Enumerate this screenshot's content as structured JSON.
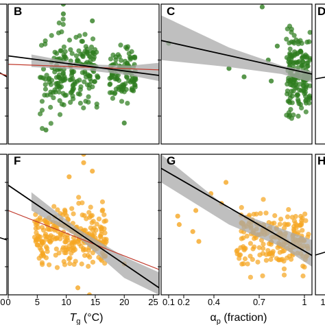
{
  "colors": {
    "green_points": "#2e7d1f",
    "orange_points": "#f5a623",
    "ci_band": "#a9a9a9",
    "fit_line": "#000000",
    "ref_line": "#c0392b"
  },
  "axis_titles": {
    "tg": {
      "main": "T",
      "sub": "g",
      "unit": " (°C)"
    },
    "ap": {
      "main": "α",
      "sub": "p",
      "unit": " (fraction)"
    }
  },
  "edge_ticks": {
    "left_zero": "0",
    "right_one": "1"
  },
  "chart_data": [
    {
      "letter": "B",
      "type": "scatter",
      "row": "top",
      "column": "tg",
      "xlim": [
        0,
        26
      ],
      "ylim": [
        0,
        1
      ],
      "point_color": "green",
      "fit": {
        "x": [
          0,
          26
        ],
        "y": [
          0.63,
          0.49
        ]
      },
      "ci": {
        "upper": [
          [
            4,
            0.64
          ],
          [
            13,
            0.57
          ],
          [
            21,
            0.56
          ],
          [
            26,
            0.58
          ]
        ],
        "lower": [
          [
            26,
            0.45
          ],
          [
            21,
            0.49
          ],
          [
            13,
            0.53
          ],
          [
            4,
            0.55
          ]
        ]
      },
      "ref": {
        "x": [
          0,
          26
        ],
        "y": [
          0.57,
          0.53
        ]
      },
      "clusters": [
        {
          "x": [
            5.5,
            10
          ],
          "y": [
            0.05,
            0.95
          ],
          "n": 90
        },
        {
          "x": [
            10.5,
            15.5
          ],
          "y": [
            0.2,
            0.85
          ],
          "n": 110
        },
        {
          "x": [
            17.5,
            22
          ],
          "y": [
            0.25,
            0.75
          ],
          "n": 110
        }
      ],
      "extra_points": [
        [
          9.5,
          1.0
        ],
        [
          9.5,
          0.93
        ],
        [
          14.5,
          0.88
        ],
        [
          20,
          0.15
        ],
        [
          6.5,
          0.1
        ]
      ]
    },
    {
      "letter": "C",
      "type": "scatter",
      "row": "top",
      "column": "ap",
      "xlim": [
        0.05,
        1.05
      ],
      "ylim": [
        0,
        1
      ],
      "point_color": "green",
      "fit": {
        "x": [
          0.05,
          1.05
        ],
        "y": [
          0.74,
          0.5
        ]
      },
      "ci": {
        "upper": [
          [
            0.05,
            0.92
          ],
          [
            0.5,
            0.69
          ],
          [
            0.85,
            0.56
          ],
          [
            1.05,
            0.52
          ]
        ],
        "lower": [
          [
            1.05,
            0.44
          ],
          [
            0.85,
            0.5
          ],
          [
            0.5,
            0.55
          ],
          [
            0.05,
            0.6
          ]
        ]
      },
      "ref": null,
      "clusters": [
        {
          "x": [
            0.88,
            1.04
          ],
          "y": [
            0.05,
            0.9
          ],
          "n": 180
        }
      ],
      "extra_points": [
        [
          0.1,
          0.72
        ],
        [
          0.5,
          0.54
        ],
        [
          0.6,
          0.48
        ],
        [
          0.72,
          0.98
        ],
        [
          0.76,
          0.6
        ],
        [
          0.78,
          0.45
        ],
        [
          0.82,
          0.7
        ]
      ]
    },
    {
      "letter": "F",
      "type": "scatter",
      "row": "bottom",
      "column": "tg",
      "xlim": [
        0,
        26
      ],
      "ylim": [
        0,
        1
      ],
      "point_color": "orange",
      "fit": {
        "x": [
          0,
          26
        ],
        "y": [
          0.78,
          0.05
        ]
      },
      "ci": {
        "upper": [
          [
            4,
            0.73
          ],
          [
            12,
            0.47
          ],
          [
            20,
            0.27
          ],
          [
            26,
            0.16
          ]
        ],
        "lower": [
          [
            26,
            0.0
          ],
          [
            20,
            0.12
          ],
          [
            12,
            0.41
          ],
          [
            4,
            0.6
          ]
        ]
      },
      "ref": {
        "x": [
          0,
          26
        ],
        "y": [
          0.6,
          0.18
        ]
      },
      "clusters": [
        {
          "x": [
            4.5,
            17
          ],
          "y": [
            0.12,
            0.72
          ],
          "n": 260
        }
      ],
      "extra_points": [
        [
          13,
          1.0
        ],
        [
          13,
          0.94
        ],
        [
          14.5,
          0.88
        ],
        [
          10.5,
          0.84
        ],
        [
          12,
          0.05
        ],
        [
          14,
          0.0
        ],
        [
          20,
          0.22
        ]
      ]
    },
    {
      "letter": "G",
      "type": "scatter",
      "row": "bottom",
      "column": "ap",
      "xlim": [
        0.05,
        1.05
      ],
      "ylim": [
        0,
        1
      ],
      "point_color": "orange",
      "fit": {
        "x": [
          0.05,
          1.05
        ],
        "y": [
          0.9,
          0.28
        ]
      },
      "ci": {
        "upper": [
          [
            0.05,
            1.0
          ],
          [
            0.5,
            0.61
          ],
          [
            0.85,
            0.47
          ],
          [
            1.05,
            0.39
          ]
        ],
        "lower": [
          [
            1.05,
            0.2
          ],
          [
            0.85,
            0.34
          ],
          [
            0.5,
            0.5
          ],
          [
            0.05,
            0.8
          ]
        ]
      },
      "ref": null,
      "clusters": [
        {
          "x": [
            0.55,
            1.03
          ],
          "y": [
            0.08,
            0.72
          ],
          "n": 210
        }
      ],
      "extra_points": [
        [
          0.16,
          0.56
        ],
        [
          0.17,
          0.5
        ],
        [
          0.26,
          0.45
        ],
        [
          0.28,
          0.6
        ],
        [
          0.38,
          0.72
        ],
        [
          0.45,
          0.65
        ],
        [
          0.48,
          0.8
        ],
        [
          0.3,
          0.38
        ]
      ]
    }
  ],
  "panels_partial": {
    "D": {
      "letter": "D"
    },
    "H": {
      "letter": "H"
    }
  },
  "x_axes": {
    "tg": {
      "ticks": [
        0,
        5,
        10,
        15,
        20,
        25
      ],
      "labels": [
        "0",
        "5",
        "10",
        "15",
        "20",
        "25"
      ]
    },
    "ap": {
      "ticks": [
        0.1,
        0.2,
        0.4,
        0.7,
        1.0
      ],
      "labels": [
        "0.1",
        "0.2",
        "0.4",
        "0.7",
        "1"
      ]
    }
  }
}
